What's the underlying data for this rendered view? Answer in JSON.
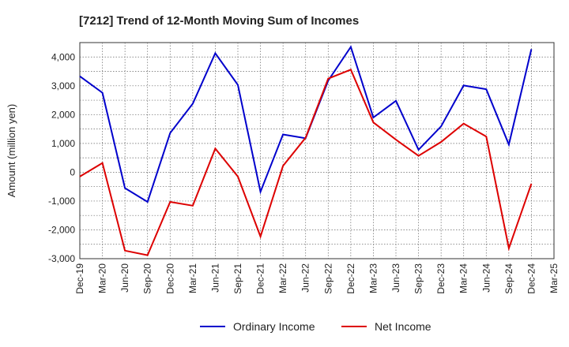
{
  "chart_data": {
    "type": "line",
    "title": "[7212]  Trend of 12-Month Moving Sum of Incomes",
    "xlabel": "",
    "ylabel": "Amount (million yen)",
    "ylim": [
      -3000,
      4500
    ],
    "yticks": [
      4000,
      3000,
      2000,
      1000,
      0,
      -1000,
      -2000,
      -3000
    ],
    "ytick_labels": [
      "4,000",
      "3,000",
      "2,000",
      "1,000",
      "0",
      "-1,000",
      "-2,000",
      "-3,000"
    ],
    "grid": true,
    "legend_position": "bottom-center",
    "categories": [
      "Dec-19",
      "Mar-20",
      "Jun-20",
      "Sep-20",
      "Dec-20",
      "Mar-21",
      "Jun-21",
      "Sep-21",
      "Dec-21",
      "Mar-22",
      "Jun-22",
      "Sep-22",
      "Dec-22",
      "Mar-23",
      "Jun-23",
      "Sep-23",
      "Dec-23",
      "Mar-24",
      "Jun-24",
      "Sep-24",
      "Dec-24",
      "Mar-25"
    ],
    "series": [
      {
        "name": "Ordinary Income",
        "color": "#0000cc",
        "values": [
          3330,
          2760,
          -550,
          -1030,
          1360,
          2380,
          4130,
          3030,
          -680,
          1310,
          1180,
          3180,
          4350,
          1900,
          2480,
          780,
          1590,
          3010,
          2880,
          960,
          4270,
          null
        ]
      },
      {
        "name": "Net Income",
        "color": "#dd0000",
        "values": [
          -150,
          320,
          -2720,
          -2880,
          -1030,
          -1160,
          820,
          -150,
          -2230,
          220,
          1200,
          3250,
          3560,
          1730,
          1130,
          570,
          1050,
          1690,
          1240,
          -2640,
          -400,
          null
        ]
      }
    ]
  }
}
